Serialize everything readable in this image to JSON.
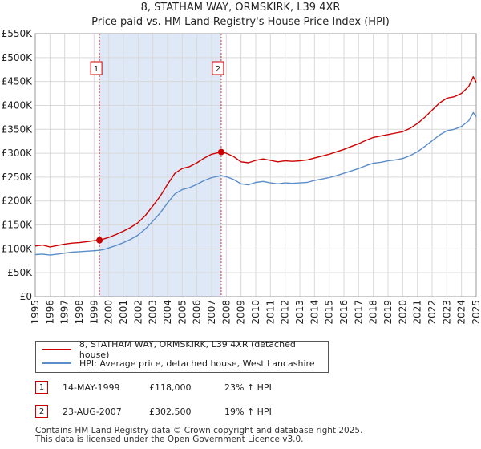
{
  "chart_data": {
    "type": "line",
    "title": "8, STATHAM WAY, ORMSKIRK, L39 4XR",
    "subtitle": "Price paid vs. HM Land Registry's House Price Index (HPI)",
    "ylim": [
      0,
      550000
    ],
    "xlim": [
      1995,
      2025
    ],
    "y_ticks": [
      0,
      50000,
      100000,
      150000,
      200000,
      250000,
      300000,
      350000,
      400000,
      450000,
      500000,
      550000
    ],
    "y_tick_labels": [
      "£0",
      "£50K",
      "£100K",
      "£150K",
      "£200K",
      "£250K",
      "£300K",
      "£350K",
      "£400K",
      "£450K",
      "£500K",
      "£550K"
    ],
    "x_ticks": [
      1995,
      1996,
      1997,
      1998,
      1999,
      2000,
      2001,
      2002,
      2003,
      2004,
      2005,
      2006,
      2007,
      2008,
      2009,
      2010,
      2011,
      2012,
      2013,
      2014,
      2015,
      2016,
      2017,
      2018,
      2019,
      2020,
      2021,
      2022,
      2023,
      2024,
      2025
    ],
    "x_tick_labels": [
      "1995",
      "1996",
      "1997",
      "1998",
      "1999",
      "2000",
      "2001",
      "2002",
      "2003",
      "2004",
      "2005",
      "2006",
      "2007",
      "2008",
      "2009",
      "2010",
      "2011",
      "2012",
      "2013",
      "2014",
      "2015",
      "2016",
      "2017",
      "2018",
      "2019",
      "2020",
      "2021",
      "2022",
      "2023",
      "2024",
      "2025"
    ],
    "grid": true,
    "series": [
      {
        "name": "8, STATHAM WAY, ORMSKIRK, L39 4XR (detached house)",
        "color": "#cc0000",
        "points": [
          [
            1995.0,
            106000
          ],
          [
            1995.5,
            108000
          ],
          [
            1996.0,
            104000
          ],
          [
            1996.5,
            107000
          ],
          [
            1997.0,
            110000
          ],
          [
            1997.5,
            112000
          ],
          [
            1998.0,
            113000
          ],
          [
            1998.5,
            115000
          ],
          [
            1999.0,
            117000
          ],
          [
            1999.37,
            118000
          ],
          [
            1999.7,
            121000
          ],
          [
            2000.0,
            124000
          ],
          [
            2000.5,
            130000
          ],
          [
            2001.0,
            137000
          ],
          [
            2001.5,
            145000
          ],
          [
            2002.0,
            155000
          ],
          [
            2002.5,
            170000
          ],
          [
            2003.0,
            190000
          ],
          [
            2003.5,
            210000
          ],
          [
            2004.0,
            235000
          ],
          [
            2004.5,
            258000
          ],
          [
            2005.0,
            268000
          ],
          [
            2005.5,
            272000
          ],
          [
            2006.0,
            280000
          ],
          [
            2006.5,
            290000
          ],
          [
            2007.0,
            298000
          ],
          [
            2007.65,
            302500
          ],
          [
            2008.0,
            300000
          ],
          [
            2008.5,
            293000
          ],
          [
            2009.0,
            282000
          ],
          [
            2009.5,
            280000
          ],
          [
            2010.0,
            285000
          ],
          [
            2010.5,
            288000
          ],
          [
            2011.0,
            285000
          ],
          [
            2011.5,
            282000
          ],
          [
            2012.0,
            284000
          ],
          [
            2012.5,
            283000
          ],
          [
            2013.0,
            284000
          ],
          [
            2013.5,
            286000
          ],
          [
            2014.0,
            290000
          ],
          [
            2014.5,
            294000
          ],
          [
            2015.0,
            298000
          ],
          [
            2015.5,
            303000
          ],
          [
            2016.0,
            308000
          ],
          [
            2016.5,
            314000
          ],
          [
            2017.0,
            320000
          ],
          [
            2017.5,
            327000
          ],
          [
            2018.0,
            333000
          ],
          [
            2018.5,
            336000
          ],
          [
            2019.0,
            339000
          ],
          [
            2019.5,
            342000
          ],
          [
            2020.0,
            345000
          ],
          [
            2020.5,
            352000
          ],
          [
            2021.0,
            362000
          ],
          [
            2021.5,
            375000
          ],
          [
            2022.0,
            390000
          ],
          [
            2022.5,
            405000
          ],
          [
            2023.0,
            415000
          ],
          [
            2023.5,
            418000
          ],
          [
            2024.0,
            425000
          ],
          [
            2024.5,
            440000
          ],
          [
            2024.8,
            460000
          ],
          [
            2025.0,
            448000
          ]
        ]
      },
      {
        "name": "HPI: Average price, detached house, West Lancashire",
        "color": "#5b8dc9",
        "points": [
          [
            1995.0,
            88000
          ],
          [
            1995.5,
            89000
          ],
          [
            1996.0,
            87000
          ],
          [
            1996.5,
            89000
          ],
          [
            1997.0,
            91000
          ],
          [
            1997.5,
            93000
          ],
          [
            1998.0,
            94000
          ],
          [
            1998.5,
            95000
          ],
          [
            1999.0,
            96000
          ],
          [
            1999.37,
            97000
          ],
          [
            1999.7,
            99000
          ],
          [
            2000.0,
            102000
          ],
          [
            2000.5,
            107000
          ],
          [
            2001.0,
            113000
          ],
          [
            2001.5,
            120000
          ],
          [
            2002.0,
            129000
          ],
          [
            2002.5,
            142000
          ],
          [
            2003.0,
            158000
          ],
          [
            2003.5,
            175000
          ],
          [
            2004.0,
            196000
          ],
          [
            2004.5,
            215000
          ],
          [
            2005.0,
            224000
          ],
          [
            2005.5,
            228000
          ],
          [
            2006.0,
            235000
          ],
          [
            2006.5,
            243000
          ],
          [
            2007.0,
            249000
          ],
          [
            2007.65,
            253000
          ],
          [
            2008.0,
            251000
          ],
          [
            2008.5,
            245000
          ],
          [
            2009.0,
            236000
          ],
          [
            2009.5,
            234000
          ],
          [
            2010.0,
            239000
          ],
          [
            2010.5,
            241000
          ],
          [
            2011.0,
            238000
          ],
          [
            2011.5,
            236000
          ],
          [
            2012.0,
            238000
          ],
          [
            2012.5,
            237000
          ],
          [
            2013.0,
            238000
          ],
          [
            2013.5,
            239000
          ],
          [
            2014.0,
            243000
          ],
          [
            2014.5,
            246000
          ],
          [
            2015.0,
            249000
          ],
          [
            2015.5,
            253000
          ],
          [
            2016.0,
            258000
          ],
          [
            2016.5,
            263000
          ],
          [
            2017.0,
            268000
          ],
          [
            2017.5,
            274000
          ],
          [
            2018.0,
            279000
          ],
          [
            2018.5,
            281000
          ],
          [
            2019.0,
            284000
          ],
          [
            2019.5,
            286000
          ],
          [
            2020.0,
            289000
          ],
          [
            2020.5,
            295000
          ],
          [
            2021.0,
            303000
          ],
          [
            2021.5,
            314000
          ],
          [
            2022.0,
            326000
          ],
          [
            2022.5,
            338000
          ],
          [
            2023.0,
            347000
          ],
          [
            2023.5,
            350000
          ],
          [
            2024.0,
            356000
          ],
          [
            2024.5,
            368000
          ],
          [
            2024.8,
            385000
          ],
          [
            2025.0,
            376000
          ]
        ]
      }
    ],
    "transactions": [
      {
        "label": "1",
        "date": "14-MAY-1999",
        "x": 1999.37,
        "price_value": 118000,
        "price": "£118,000",
        "hpi": "23% ↑ HPI"
      },
      {
        "label": "2",
        "date": "23-AUG-2007",
        "x": 2007.65,
        "price_value": 302500,
        "price": "£302,500",
        "hpi": "19% ↑ HPI"
      }
    ],
    "shaded_region": [
      1999.37,
      2007.65
    ],
    "footer": "Contains HM Land Registry data © Crown copyright and database right 2025.\nThis data is licensed under the Open Government Licence v3.0."
  },
  "colors": {
    "property": "#cc0000",
    "hpi": "#5b8dc9",
    "shade": "#dfe8f6",
    "grid": "#d9d9d9"
  }
}
